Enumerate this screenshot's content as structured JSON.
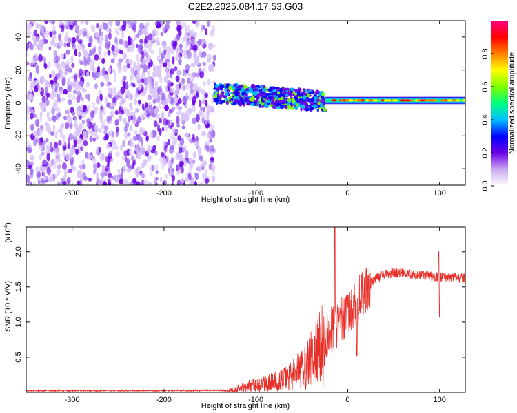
{
  "title": "C2E2.2025.084.17.53.G03",
  "chart_data": [
    {
      "type": "heatmap",
      "name": "spectrogram",
      "xlabel": "Height of straight line (km)",
      "ylabel": "Frequency (Hz)",
      "xlim": [
        -350,
        128
      ],
      "ylim": [
        -50,
        50
      ],
      "xticks": [
        -300,
        -200,
        -100,
        0,
        100
      ],
      "yticks": [
        -40,
        -20,
        0,
        20,
        40
      ],
      "grid": false,
      "colorbar": {
        "label": "Normalized spectral amplitude",
        "range": [
          0,
          1
        ],
        "ticks": [
          "0.0",
          "0.2",
          "0.4",
          "0.6",
          "0.8"
        ],
        "colors": [
          "#ffffff",
          "#c8a8f0",
          "#6a00e8",
          "#0000ff",
          "#00bfff",
          "#00ff7f",
          "#7fff00",
          "#ffff00",
          "#ff8000",
          "#ff0000",
          "#ff0080"
        ]
      },
      "regions": [
        {
          "label": "noise",
          "x": [
            -350,
            -145
          ],
          "y": [
            -50,
            50
          ],
          "amplitude": 0.1
        },
        {
          "label": "transition",
          "x": [
            -145,
            -25
          ],
          "y_center_start": 6,
          "y_center_end": 1,
          "amplitude": 0.4
        },
        {
          "label": "tone",
          "x": [
            -25,
            128
          ],
          "y": 1.5,
          "amplitude": 0.85
        }
      ]
    },
    {
      "type": "line",
      "name": "snr",
      "xlabel": "Height of straight line (km)",
      "ylabel": "SNR (10 * V/V)",
      "y_multiplier": "(x10",
      "y_multiplier_exp": "4",
      "y_multiplier_close": ")",
      "xlim": [
        -350,
        128
      ],
      "ylim": [
        0,
        23500
      ],
      "xticks": [
        -300,
        -200,
        -100,
        0,
        100
      ],
      "yticks": [
        "0.5",
        "1.0",
        "1.5",
        "2.0"
      ],
      "ytick_values": [
        5000,
        10000,
        15000,
        20000
      ],
      "grid": false,
      "color": "#e8302a",
      "x": [
        -350,
        -200,
        -130,
        -110,
        -90,
        -70,
        -55,
        -45,
        -38,
        -30,
        -25,
        -20,
        -15,
        -10,
        -5,
        0,
        10,
        20,
        25,
        30,
        40,
        50,
        60,
        70,
        80,
        90,
        100,
        110,
        120,
        128
      ],
      "y": [
        250,
        250,
        300,
        900,
        1300,
        1800,
        2800,
        3800,
        5000,
        6500,
        7000,
        8300,
        9200,
        10000,
        10500,
        11200,
        12800,
        14500,
        15500,
        16200,
        16700,
        17000,
        17000,
        16800,
        16700,
        16500,
        16500,
        16400,
        16300,
        16200
      ],
      "spikes": [
        {
          "x": -14,
          "y": 23500
        },
        {
          "x": 10,
          "y": 5200
        },
        {
          "x": 99,
          "y": 20000
        },
        {
          "x": 100,
          "y": 10700
        }
      ]
    }
  ]
}
